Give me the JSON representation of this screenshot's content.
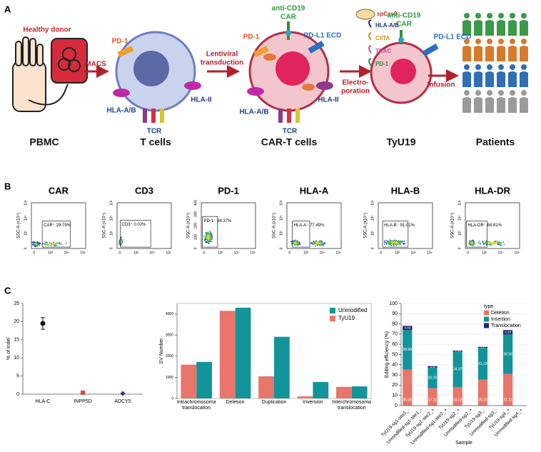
{
  "panel_a": {
    "label": "A",
    "healthy_donor": "Healthy donor",
    "macs": "MACS",
    "t_cell": {
      "pd1": "PD-1",
      "hla_ab": "HLA-A/B",
      "tcr": "TCR",
      "hla_ii": "HLA-II"
    },
    "lentiviral": [
      "Lentiviral",
      "transduction"
    ],
    "car_t": {
      "car": [
        "anti-CD19",
        "CAR"
      ],
      "pd1": "PD-1",
      "pdl1": "PD-L1 ECD",
      "hla_ab": "HLA-A/B",
      "tcr": "TCR",
      "hla_ii": "HLA-II"
    },
    "edits": {
      "spcas9": "spCas9",
      "hla_ab": "HLA-A/B",
      "ciita": "CIITA",
      "trac": "TRAC",
      "pd1": "PD-1"
    },
    "electroporation": [
      "Electro-",
      "poration"
    ],
    "tyu19": {
      "car": [
        "anti-CD19",
        "CAR"
      ],
      "pdl1": "PD-L1 ECD"
    },
    "infusion": "Infusion",
    "stages": [
      "PBMC",
      "T cells",
      "CAR-T cells",
      "TyU19",
      "Patients"
    ]
  },
  "panel_b": {
    "label": "B",
    "y_axis_label": "SSC-A (x10⁴)",
    "x_ticks": [
      "0",
      "10²",
      "10⁴",
      "10⁶"
    ],
    "plots": [
      {
        "title": "CAR",
        "gate": "CAR⁺ 29.79%",
        "y_ticks": [
          "0",
          "10²",
          "10⁴",
          "10⁶"
        ]
      },
      {
        "title": "CD3",
        "gate": "CD3⁺ 0.02%",
        "y_ticks": [
          "0",
          "10²",
          "10⁴",
          "10⁶"
        ]
      },
      {
        "title": "PD-1",
        "gate": "PD-1⁻ 98.37%",
        "y_ticks": [
          "0",
          "100",
          "200",
          "300",
          "400"
        ]
      },
      {
        "title": "HLA-A",
        "gate": "HLA-A⁻ 77.49%",
        "y_ticks": [
          "0",
          "10²",
          "10⁴",
          "10⁶"
        ]
      },
      {
        "title": "HLA-B",
        "gate": "HLA-B⁻ 91.01%",
        "y_ticks": [
          "0",
          "10²",
          "10⁴",
          "10⁶"
        ]
      },
      {
        "title": "HLA-DR",
        "gate": "HLA-DR⁻ 84.81%",
        "y_ticks": [
          "0",
          "10²",
          "10⁴",
          "10⁶"
        ]
      }
    ]
  },
  "panel_c": {
    "label": "C"
  },
  "chart_data": [
    {
      "type": "scatter",
      "y_label": "% of Indel",
      "categories": [
        "HLA-C",
        "INPP5D",
        "ADCY5"
      ],
      "values": [
        19.5,
        0.4,
        0.2
      ],
      "errors": [
        1.6,
        0,
        0
      ],
      "colors": [
        "#111111",
        "#e0453c",
        "#1f3a93"
      ],
      "markers": [
        "circle",
        "square",
        "diamond"
      ],
      "ylim": [
        0,
        25
      ],
      "yticks": [
        0,
        5,
        10,
        15,
        20,
        25
      ]
    },
    {
      "type": "bar",
      "y_label": "SV Number",
      "categories": [
        "Intrachromosomal translocation",
        "Deletion",
        "Duplication",
        "Inversion",
        "Interchromosomal translocation"
      ],
      "series": [
        {
          "name": "Unmodified",
          "color": "#12959a",
          "values": [
            1730,
            4300,
            2920,
            780,
            570
          ]
        },
        {
          "name": "TyU19",
          "color": "#e8766b",
          "values": [
            1600,
            4150,
            1050,
            100,
            550
          ]
        }
      ],
      "ylim": [
        0,
        4500
      ],
      "yticks": [
        0,
        1000,
        2000,
        3000,
        4000
      ],
      "legend": "top-right"
    },
    {
      "type": "stacked_bar",
      "x_label": "Sample",
      "y_label": "Editing efficiency (%)",
      "legend_title": "type",
      "categories": [
        "TyU19-sg1-site1_-",
        "Unmodified-sg1-site1_-",
        "TyU19-sg1-site2_+",
        "Unmodified-sg1-site2_+",
        "TyU19-sg2_+",
        "Unmodified-sg2_+",
        "TyU19-sg3_-",
        "Unmodified-sg3_-",
        "TyU19-sg4_+",
        "Unmodified-sg4_+"
      ],
      "series": [
        {
          "name": "Deletion",
          "color": "#e8766b",
          "values": [
            35.34,
            null,
            17.11,
            null,
            18.22,
            null,
            25.35,
            null,
            31.11,
            null
          ]
        },
        {
          "name": "Insertion",
          "color": "#12959a",
          "values": [
            38.68,
            null,
            20.2,
            null,
            34.37,
            null,
            31.19,
            null,
            38.56,
            null
          ],
          "value_labels": [
            "38.68",
            null,
            "20.20",
            null,
            "34.37",
            null,
            "31.19",
            null,
            "38.56",
            null
          ]
        },
        {
          "name": "Translocation",
          "color": "#1b2a6b",
          "values": [
            4.09,
            null,
            1.4,
            null,
            1.32,
            null,
            1.0,
            null,
            4.28,
            null
          ],
          "value_labels": [
            "4.09",
            null,
            "1.4",
            null,
            "1.32",
            null,
            "1.0",
            null,
            "4.28",
            null
          ]
        }
      ],
      "ylim": [
        0,
        100
      ],
      "yticks": [
        0,
        10,
        20,
        30,
        40,
        50,
        60,
        70,
        80,
        90,
        100
      ],
      "legend": "top-right"
    }
  ]
}
